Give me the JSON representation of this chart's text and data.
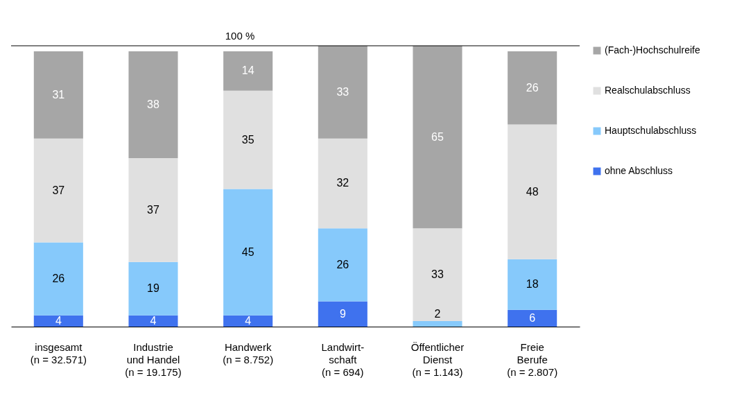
{
  "chart_data": {
    "type": "bar",
    "stacked": true,
    "data_labels": true,
    "legend": "right",
    "grid": false,
    "ylim": [
      0,
      100
    ],
    "categories": [
      "insgesamt\n\n\n(n = 32.571)",
      "Industrie\nund Handel\n\n(n = 19.175)",
      "Handwerk\n\n\n(n = 8.752)",
      "Landwirt-\nschaft\n\n(n = 694)",
      "Öffentlicher\nDienst\n\n(n = 1.143)",
      "Freie\nBerufe\n\n(n = 2.807)"
    ],
    "series": [
      {
        "name": "ohne Abschluss",
        "color": "#3f72ee",
        "values": [
          4,
          4,
          4,
          9,
          null,
          6
        ]
      },
      {
        "name": "Hauptschulabschluss",
        "color": "#86c9fb",
        "values": [
          26,
          19,
          45,
          26,
          2,
          18
        ]
      },
      {
        "name": "Realschulabschluss",
        "color": "#e0e0e0",
        "values": [
          37,
          37,
          35,
          32,
          33,
          48
        ]
      },
      {
        "name": "(Fach-)Hochschulreife",
        "color": "#a6a6a6",
        "values": [
          31,
          38,
          14,
          33,
          65,
          26
        ]
      }
    ],
    "ref_lines": [
      {
        "axis": "y",
        "value": 100,
        "label": "100 %",
        "color": "#000000"
      }
    ]
  }
}
